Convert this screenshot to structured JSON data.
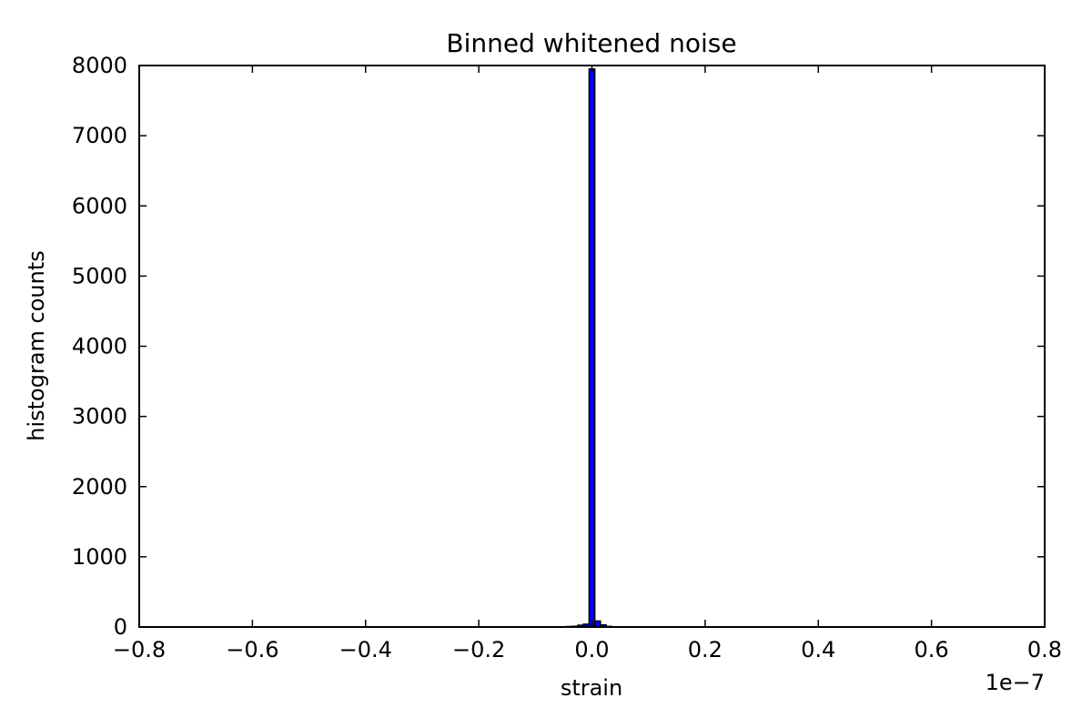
{
  "chart_data": {
    "type": "bar",
    "title": "Binned whitened noise",
    "xlabel": "strain",
    "ylabel": "histogram counts",
    "x_scale_label": "1e−7",
    "xlim": [
      -0.8,
      0.8
    ],
    "ylim": [
      0,
      8000
    ],
    "x_ticks": [
      -0.8,
      -0.6,
      -0.4,
      -0.2,
      0.0,
      0.2,
      0.4,
      0.6,
      0.8
    ],
    "x_tick_labels": [
      "−0.8",
      "−0.6",
      "−0.4",
      "−0.2",
      "0.0",
      "0.2",
      "0.4",
      "0.6",
      "0.8"
    ],
    "y_ticks": [
      0,
      1000,
      2000,
      3000,
      4000,
      5000,
      6000,
      7000,
      8000
    ],
    "y_tick_labels": [
      "0",
      "1000",
      "2000",
      "3000",
      "4000",
      "5000",
      "6000",
      "7000",
      "8000"
    ],
    "grid": false,
    "legend": "none",
    "bar_color": "#0000ff",
    "bin_width": 0.01,
    "bins": [
      {
        "x": -0.04,
        "count": 3
      },
      {
        "x": -0.03,
        "count": 10
      },
      {
        "x": -0.02,
        "count": 25
      },
      {
        "x": -0.01,
        "count": 40
      },
      {
        "x": 0.0,
        "count": 7950
      },
      {
        "x": 0.01,
        "count": 85
      },
      {
        "x": 0.02,
        "count": 30
      },
      {
        "x": 0.03,
        "count": 8
      }
    ]
  }
}
